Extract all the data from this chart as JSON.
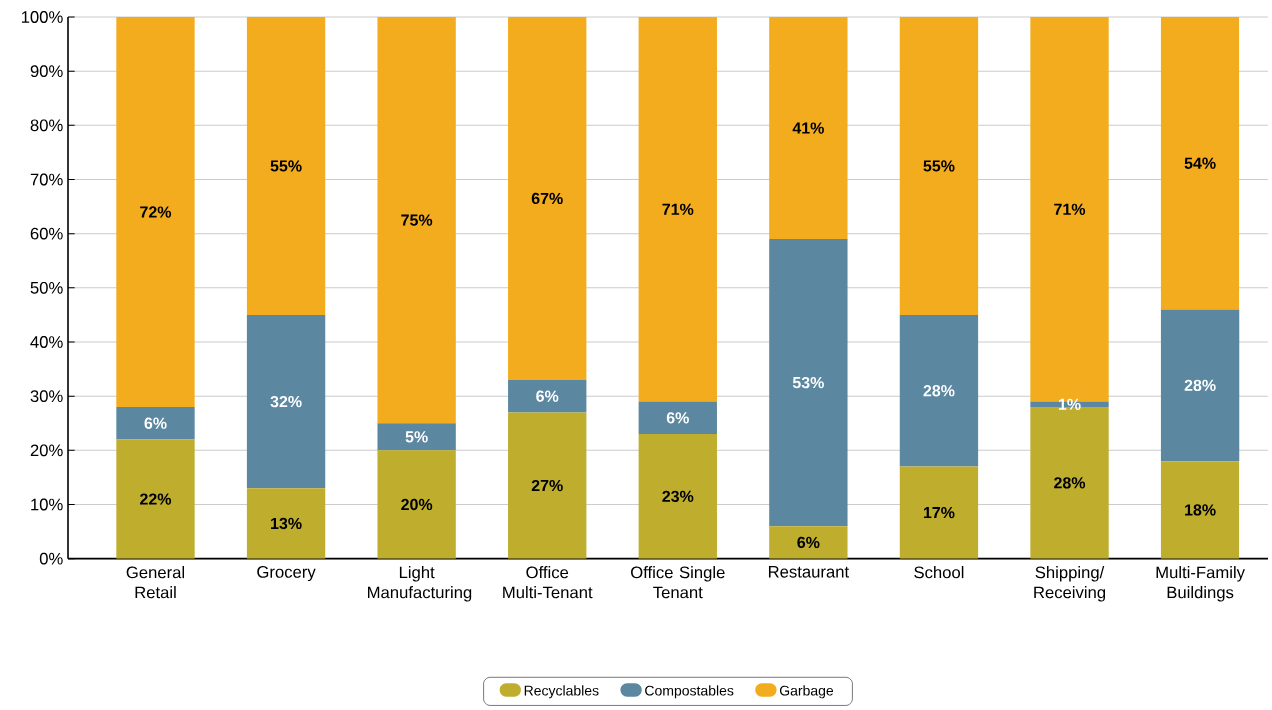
{
  "chart_data": {
    "type": "bar",
    "stacked": true,
    "categories": [
      "General Retail",
      "Grocery",
      "Light Manufacturing",
      "Office Multi-Tenant",
      "Office Single Tenant",
      "Restaurant",
      "School",
      "Shipping/ Receiving",
      "Multi-Family Buildings"
    ],
    "series": [
      {
        "name": "Recyclables",
        "color": "#bfae2e",
        "values": [
          22,
          13,
          20,
          27,
          23,
          6,
          17,
          28,
          18
        ],
        "value_labels": [
          "22%",
          "13%",
          "20%",
          "27%",
          "23%",
          "6%",
          "17%",
          "28%",
          "18%"
        ]
      },
      {
        "name": "Compostables",
        "color": "#5b88a0",
        "values": [
          6,
          32,
          5,
          6,
          6,
          53,
          28,
          1,
          28
        ],
        "value_labels": [
          "6%",
          "32%",
          "5%",
          "6%",
          "6%",
          "53%",
          "28%",
          "1%",
          "28%"
        ]
      },
      {
        "name": "Garbage",
        "color": "#f2ac1e",
        "values": [
          72,
          55,
          75,
          67,
          71,
          41,
          55,
          71,
          54
        ],
        "value_labels": [
          "72%",
          "55%",
          "75%",
          "67%",
          "71%",
          "41%",
          "55%",
          "71%",
          "54%"
        ]
      }
    ],
    "ylim": [
      0,
      100
    ],
    "yticks": [
      {
        "value": 0,
        "label": "0%"
      },
      {
        "value": 10,
        "label": "10%"
      },
      {
        "value": 20,
        "label": "20%"
      },
      {
        "value": 30,
        "label": "30%"
      },
      {
        "value": 40,
        "label": "40%"
      },
      {
        "value": 50,
        "label": "50%"
      },
      {
        "value": 60,
        "label": "60%"
      },
      {
        "value": 70,
        "label": "70%"
      },
      {
        "value": 80,
        "label": "80%"
      },
      {
        "value": 90,
        "label": "90%"
      },
      {
        "value": 100,
        "label": "100%"
      }
    ],
    "grid": "y",
    "legend": "bottom"
  }
}
